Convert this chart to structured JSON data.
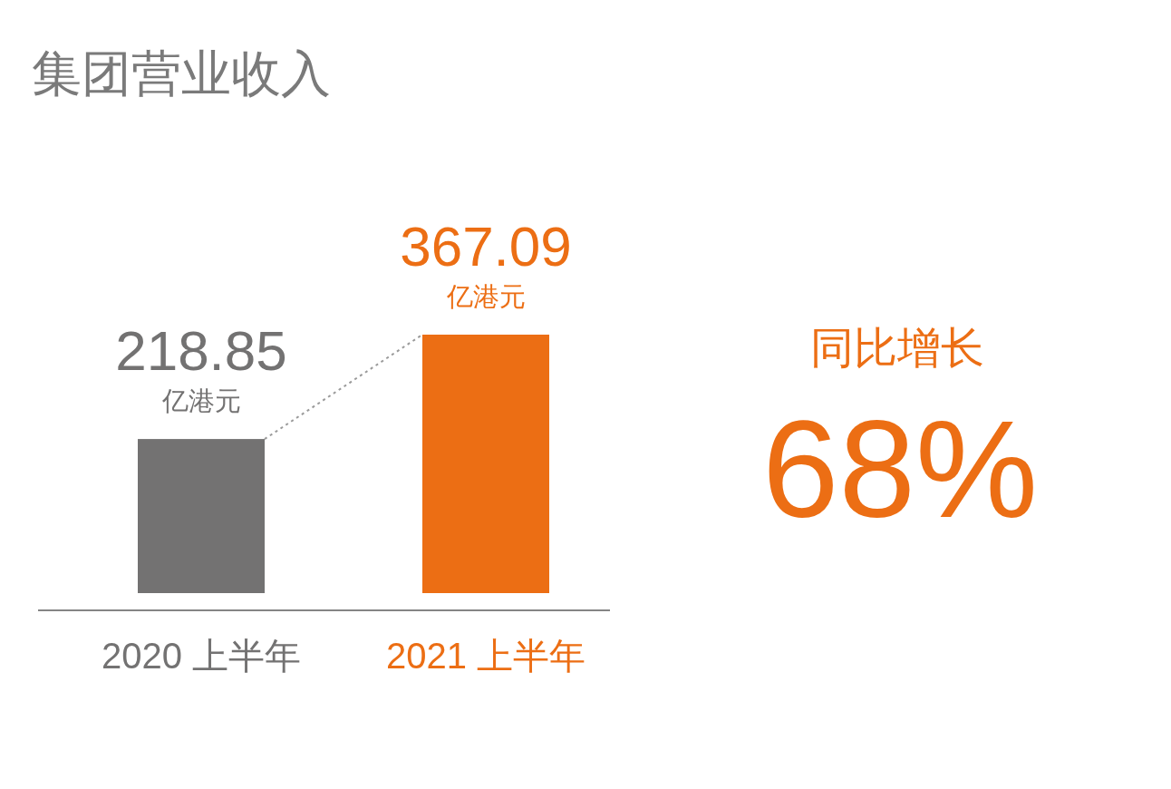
{
  "chart_data": {
    "type": "bar",
    "title": "集团营业收入",
    "categories": [
      "2020 上半年",
      "2021 上半年"
    ],
    "values": [
      218.85,
      367.09
    ],
    "colors": [
      "#737272",
      "#ec6e14"
    ],
    "data_labels": true,
    "annotations": [
      {
        "text": "亿港元",
        "x": "2020 上半年",
        "y": 218.85
      },
      {
        "text": "亿港元",
        "x": "2021 上半年",
        "y": 367.09
      },
      "同比增长",
      "68%"
    ]
  }
}
